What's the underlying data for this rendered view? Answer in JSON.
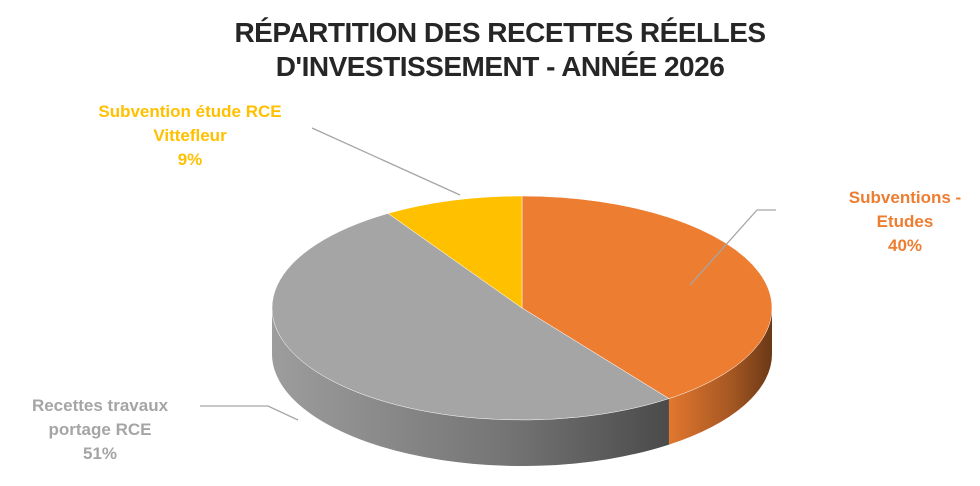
{
  "chart_data": {
    "type": "pie",
    "title": "RÉPARTITION DES RECETTES RÉELLES D'INVESTISSEMENT - ANNÉE 2026",
    "categories": [
      "Subventions - Etudes",
      "Recettes travaux portage RCE",
      "Subvention étude RCE Vittefleur"
    ],
    "values": [
      40,
      51,
      9
    ],
    "value_labels": [
      "40%",
      "51%",
      "9%"
    ],
    "colors": [
      "#ed7d31",
      "#a5a5a5",
      "#ffc000"
    ],
    "label_colors": [
      "#ed7d31",
      "#a5a5a5",
      "#ffc000"
    ]
  }
}
